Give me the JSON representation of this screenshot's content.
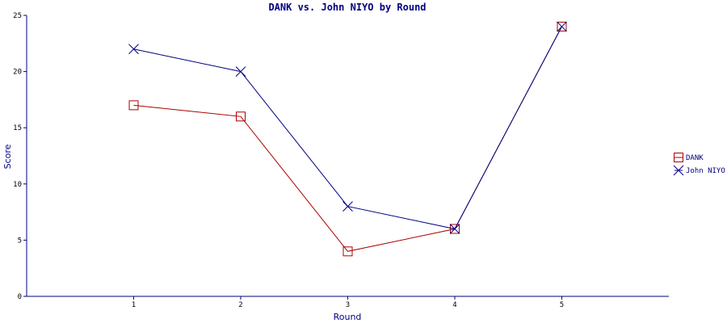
{
  "chart_data": {
    "type": "line",
    "title": "DANK vs. John NIYO by Round",
    "xlabel": "Round",
    "ylabel": "Score",
    "x": [
      1,
      2,
      3,
      4,
      5
    ],
    "xlim": [
      0,
      6
    ],
    "ylim": [
      0,
      25
    ],
    "yticks": [
      0,
      5,
      10,
      15,
      20,
      25
    ],
    "grid": false,
    "legend_position": "right",
    "series": [
      {
        "name": "DANK",
        "values": [
          17,
          16,
          4,
          6,
          24
        ],
        "color": "#aa0000",
        "marker": "square"
      },
      {
        "name": "John NIYO",
        "values": [
          22,
          20,
          8,
          6,
          24
        ],
        "color": "#000080",
        "marker": "x"
      }
    ]
  }
}
